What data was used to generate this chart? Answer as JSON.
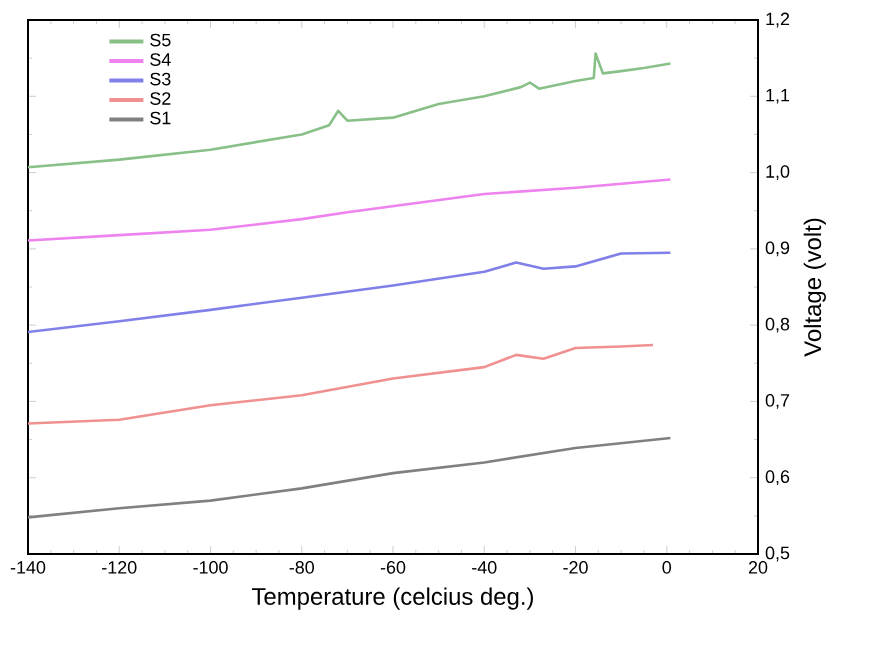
{
  "chart_data": {
    "type": "line",
    "xlabel": "Temperature (celcius deg.)",
    "ylabel": "Voltage (volt)",
    "xlim": [
      -140,
      20
    ],
    "xticks": [
      -140,
      -120,
      -100,
      -80,
      -60,
      -40,
      -20,
      0,
      20
    ],
    "ylim": [
      0.5,
      1.2
    ],
    "yticks": [
      {
        "value": 0.5,
        "label": "0,5"
      },
      {
        "value": 0.6,
        "label": "0,6"
      },
      {
        "value": 0.7,
        "label": "0,7"
      },
      {
        "value": 0.8,
        "label": "0,8"
      },
      {
        "value": 0.9,
        "label": "0,9"
      },
      {
        "value": 1.0,
        "label": "1,0"
      },
      {
        "value": 1.1,
        "label": "1,1"
      },
      {
        "value": 1.2,
        "label": "1,2"
      }
    ],
    "grid": false,
    "legend": "top left",
    "marker": "none",
    "line_style": "solid",
    "series": [
      {
        "name": "S5",
        "color": "#88c088",
        "x": [
          -140,
          -120,
          -100,
          -80,
          -74,
          -72,
          -70,
          -60,
          -50,
          -40,
          -32,
          -30,
          -28,
          -20,
          -16,
          -15.6,
          -14,
          -10,
          -5,
          0.8
        ],
        "values": [
          1.007,
          1.017,
          1.03,
          1.05,
          1.062,
          1.081,
          1.068,
          1.072,
          1.09,
          1.1,
          1.112,
          1.118,
          1.11,
          1.12,
          1.124,
          1.156,
          1.13,
          1.133,
          1.137,
          1.143
        ]
      },
      {
        "name": "S4",
        "color": "#ee82ee",
        "x": [
          -140,
          -120,
          -100,
          -80,
          -70,
          -60,
          -40,
          -20,
          0.8
        ],
        "values": [
          0.911,
          0.918,
          0.925,
          0.939,
          0.948,
          0.956,
          0.972,
          0.98,
          0.991
        ]
      },
      {
        "name": "S3",
        "color": "#8080e8",
        "x": [
          -140,
          -120,
          -100,
          -80,
          -60,
          -40,
          -33,
          -27,
          -20,
          -10,
          0.8
        ],
        "values": [
          0.791,
          0.805,
          0.82,
          0.836,
          0.852,
          0.87,
          0.882,
          0.874,
          0.877,
          0.894,
          0.895
        ]
      },
      {
        "name": "S2",
        "color": "#f09090",
        "x": [
          -140,
          -120,
          -100,
          -80,
          -60,
          -40,
          -33,
          -27,
          -20,
          -10,
          -3
        ],
        "values": [
          0.671,
          0.676,
          0.695,
          0.708,
          0.73,
          0.745,
          0.761,
          0.756,
          0.77,
          0.772,
          0.774
        ]
      },
      {
        "name": "S1",
        "color": "#808080",
        "x": [
          -140,
          -120,
          -100,
          -80,
          -60,
          -40,
          -20,
          0.8
        ],
        "values": [
          0.548,
          0.56,
          0.57,
          0.586,
          0.606,
          0.62,
          0.639,
          0.652
        ]
      }
    ]
  }
}
